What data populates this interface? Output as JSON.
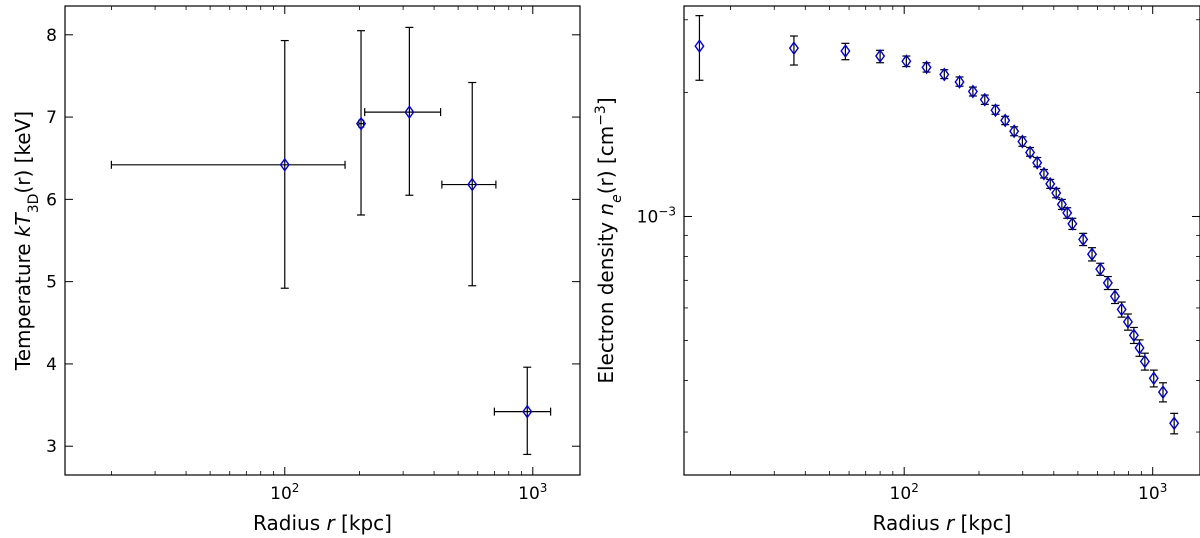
{
  "chart_data": [
    {
      "type": "scatter",
      "name": "temperature-profile",
      "xscale": "log",
      "xlim": [
        13,
        1550
      ],
      "ylim": [
        2.65,
        8.35
      ],
      "xlabel": {
        "prefix": "Radius ",
        "var": "r",
        "suffix": " [kpc]"
      },
      "ylabel": {
        "prefix": "Temperature ",
        "var": "kT",
        "sub": "3D",
        "suffix": "(r) [keV]"
      },
      "xticks": [
        {
          "value": 100,
          "base": "10",
          "exp": "2"
        },
        {
          "value": 1000,
          "base": "10",
          "exp": "3"
        }
      ],
      "yticks": [
        {
          "value": 3,
          "label": "3"
        },
        {
          "value": 4,
          "label": "4"
        },
        {
          "value": 5,
          "label": "5"
        },
        {
          "value": 6,
          "label": "6"
        },
        {
          "value": 7,
          "label": "7"
        },
        {
          "value": 8,
          "label": "8"
        }
      ],
      "points": [
        {
          "x": 100,
          "y": 6.42,
          "xlo": 20,
          "xhi": 175,
          "ylo": 4.92,
          "yhi": 7.93
        },
        {
          "x": 203,
          "y": 6.92,
          "xlo": 199,
          "xhi": 208,
          "ylo": 5.81,
          "yhi": 8.05
        },
        {
          "x": 318,
          "y": 7.06,
          "xlo": 210,
          "xhi": 425,
          "ylo": 6.05,
          "yhi": 8.09
        },
        {
          "x": 570,
          "y": 6.18,
          "xlo": 430,
          "xhi": 710,
          "ylo": 4.95,
          "yhi": 7.42
        },
        {
          "x": 950,
          "y": 3.42,
          "xlo": 700,
          "xhi": 1180,
          "ylo": 2.9,
          "yhi": 3.96
        }
      ],
      "marker_color": "#0000cc",
      "errorbar_color": "#000000"
    },
    {
      "type": "scatter",
      "name": "density-profile",
      "xscale": "log",
      "yscale": "log",
      "xlim": [
        13,
        1550
      ],
      "ylim": [
        0.000236,
        0.00324
      ],
      "xlabel": {
        "prefix": "Radius ",
        "var": "r",
        "suffix": " [kpc]"
      },
      "ylabel": {
        "prefix": "Electron density ",
        "var": "n",
        "sub": "e",
        "suffix": "(r) [cm",
        "sup": "−3",
        "tail": "]"
      },
      "xticks": [
        {
          "value": 100,
          "base": "10",
          "exp": "2"
        },
        {
          "value": 1000,
          "base": "10",
          "exp": "3"
        }
      ],
      "yticks": [
        {
          "value": 0.001,
          "base": "10",
          "exp": "−3"
        }
      ],
      "y_minor_ticks": [
        0.0003,
        0.0004,
        0.0005,
        0.0006,
        0.0007,
        0.0008,
        0.0009,
        0.002,
        0.003
      ],
      "points": [
        {
          "x": 15,
          "y": 0.00259,
          "ylo": 0.00214,
          "yhi": 0.00307
        },
        {
          "x": 36,
          "y": 0.00256,
          "ylo": 0.00233,
          "yhi": 0.00274
        },
        {
          "x": 58,
          "y": 0.00252,
          "ylo": 0.0024,
          "yhi": 0.00263
        },
        {
          "x": 80,
          "y": 0.00245,
          "ylo": 0.00236,
          "yhi": 0.00253
        },
        {
          "x": 102,
          "y": 0.00238,
          "ylo": 0.00231,
          "yhi": 0.00245
        },
        {
          "x": 123,
          "y": 0.0023,
          "ylo": 0.00224,
          "yhi": 0.00236
        },
        {
          "x": 145,
          "y": 0.00221,
          "ylo": 0.00216,
          "yhi": 0.00227
        },
        {
          "x": 167,
          "y": 0.00212,
          "ylo": 0.00207,
          "yhi": 0.00218
        },
        {
          "x": 189,
          "y": 0.00201,
          "ylo": 0.00196,
          "yhi": 0.00206
        },
        {
          "x": 211,
          "y": 0.00192,
          "ylo": 0.00187,
          "yhi": 0.00197
        },
        {
          "x": 233,
          "y": 0.00181,
          "ylo": 0.00177,
          "yhi": 0.00186
        },
        {
          "x": 255,
          "y": 0.00171,
          "ylo": 0.00167,
          "yhi": 0.00175
        },
        {
          "x": 277,
          "y": 0.00161,
          "ylo": 0.00157,
          "yhi": 0.00165
        },
        {
          "x": 299,
          "y": 0.00152,
          "ylo": 0.00148,
          "yhi": 0.00156
        },
        {
          "x": 321,
          "y": 0.00143,
          "ylo": 0.0014,
          "yhi": 0.00147
        },
        {
          "x": 343,
          "y": 0.00135,
          "ylo": 0.00132,
          "yhi": 0.00139
        },
        {
          "x": 365,
          "y": 0.00127,
          "ylo": 0.00124,
          "yhi": 0.0013
        },
        {
          "x": 387,
          "y": 0.0012,
          "ylo": 0.00117,
          "yhi": 0.00123
        },
        {
          "x": 409,
          "y": 0.00114,
          "ylo": 0.00111,
          "yhi": 0.00117
        },
        {
          "x": 431,
          "y": 0.00107,
          "ylo": 0.00104,
          "yhi": 0.0011
        },
        {
          "x": 453,
          "y": 0.00102,
          "ylo": 0.00099,
          "yhi": 0.00105
        },
        {
          "x": 475,
          "y": 0.00096,
          "ylo": 0.00093,
          "yhi": 0.00099
        },
        {
          "x": 525,
          "y": 0.00088,
          "ylo": 0.00085,
          "yhi": 0.00091
        },
        {
          "x": 570,
          "y": 0.00081,
          "ylo": 0.00078,
          "yhi": 0.00084
        },
        {
          "x": 615,
          "y": 0.000745,
          "ylo": 0.00072,
          "yhi": 0.00077
        },
        {
          "x": 660,
          "y": 0.00069,
          "ylo": 0.000665,
          "yhi": 0.000715
        },
        {
          "x": 705,
          "y": 0.00064,
          "ylo": 0.000615,
          "yhi": 0.000665
        },
        {
          "x": 750,
          "y": 0.000595,
          "ylo": 0.00057,
          "yhi": 0.00062
        },
        {
          "x": 795,
          "y": 0.000555,
          "ylo": 0.00053,
          "yhi": 0.00058
        },
        {
          "x": 840,
          "y": 0.000515,
          "ylo": 0.000492,
          "yhi": 0.000538
        },
        {
          "x": 885,
          "y": 0.00048,
          "ylo": 0.000458,
          "yhi": 0.000502
        },
        {
          "x": 930,
          "y": 0.000445,
          "ylo": 0.000424,
          "yhi": 0.000466
        },
        {
          "x": 1010,
          "y": 0.000405,
          "ylo": 0.000386,
          "yhi": 0.000424
        },
        {
          "x": 1100,
          "y": 0.000375,
          "ylo": 0.000355,
          "yhi": 0.000395
        },
        {
          "x": 1220,
          "y": 0.000315,
          "ylo": 0.000297,
          "yhi": 0.000333
        }
      ],
      "marker_color": "#0000cc",
      "errorbar_color": "#000000"
    }
  ]
}
